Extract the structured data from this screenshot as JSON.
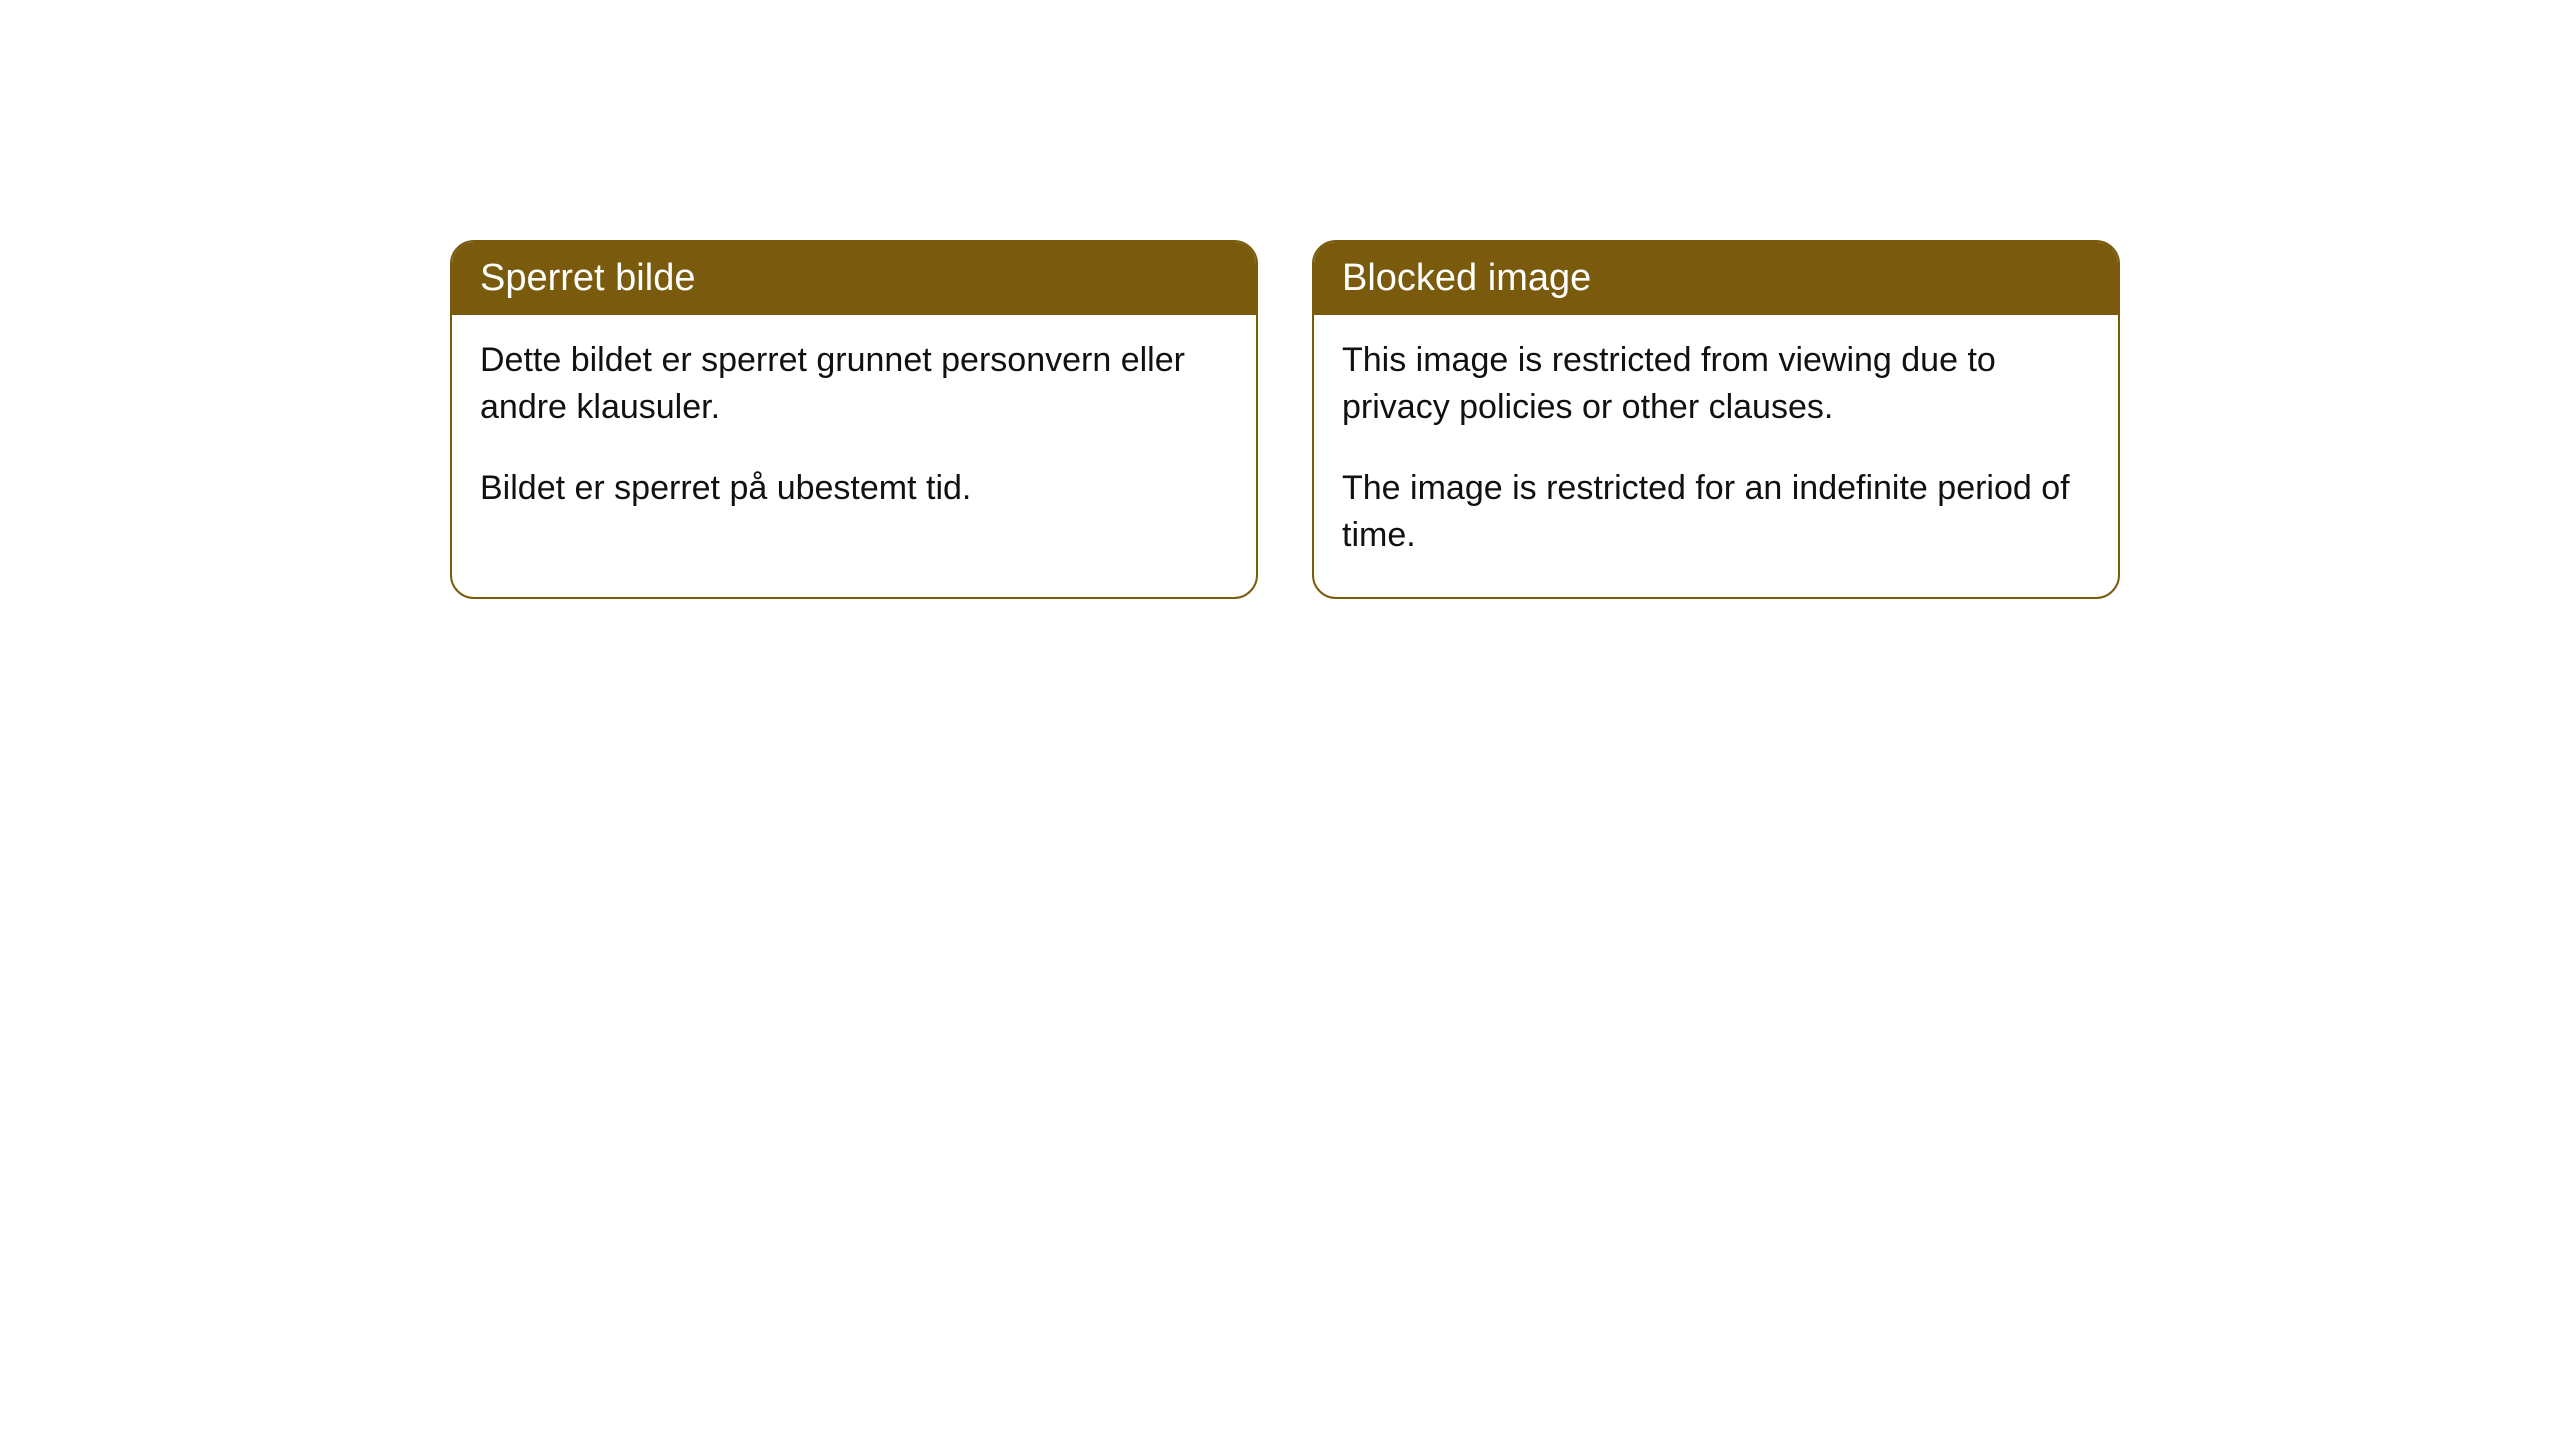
{
  "colors": {
    "headerBackground": "#7a5a0d",
    "headerText": "#ffffff",
    "cardBorder": "#7a5a0d",
    "bodyText": "#111111",
    "pageBackground": "#ffffff"
  },
  "layout": {
    "cardWidth": 808,
    "cardGap": 54,
    "borderRadius": 24,
    "containerTop": 240,
    "containerLeft": 450
  },
  "typography": {
    "headerFontSize": 38,
    "bodyFontSize": 34,
    "fontFamily": "Arial, Helvetica, sans-serif"
  },
  "cards": [
    {
      "title": "Sperret bilde",
      "paragraphs": [
        "Dette bildet er sperret grunnet personvern eller andre klausuler.",
        "Bildet er sperret på ubestemt tid."
      ]
    },
    {
      "title": "Blocked image",
      "paragraphs": [
        "This image is restricted from viewing due to privacy policies or other clauses.",
        "The image is restricted for an indefinite period of time."
      ]
    }
  ]
}
